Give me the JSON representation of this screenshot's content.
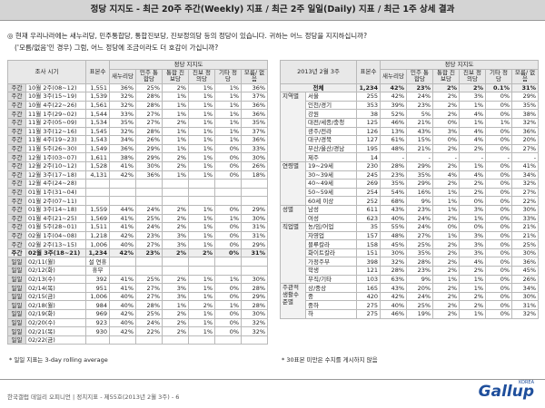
{
  "header": {
    "title": "정당 지지도 - 최근 20주 주간(Weekly) 지표 / 최근 2주 일일(Daily) 지표 / 최근 1주 상세 결과"
  },
  "question": [
    "◎ 현재 우리나라에는 새누리당, 민주통합당, 통합진보당, 진보정의당 등의 정당이 있습니다. 귀하는 어느 정당을 지지하십니까?",
    "('모름/없음'인 경우) 그럼, 어느 정당에 조금이라도 더 호감이 가십니까?"
  ],
  "left_table": {
    "col_period": "조사 시기",
    "col_n": "표본수",
    "group": "정당 지지도",
    "parties": [
      "새누리당",
      "민주 통합당",
      "통합 진보당",
      "진보 정의당",
      "기타 정당",
      "모름/ 없음"
    ],
    "rows": [
      {
        "kind": "주간",
        "period": "10월 2주(08~12)",
        "n": "1,551",
        "values": [
          "36%",
          "25%",
          "2%",
          "1%",
          "1%",
          "36%"
        ]
      },
      {
        "kind": "주간",
        "period": "10월 3주(15~19)",
        "n": "1,539",
        "values": [
          "32%",
          "28%",
          "1%",
          "1%",
          "1%",
          "37%"
        ]
      },
      {
        "kind": "주간",
        "period": "10월 4주(22~26)",
        "n": "1,561",
        "values": [
          "32%",
          "28%",
          "1%",
          "1%",
          "1%",
          "36%"
        ]
      },
      {
        "kind": "주간",
        "period": "11월 1주(29~02)",
        "n": "1,544",
        "values": [
          "33%",
          "27%",
          "1%",
          "1%",
          "1%",
          "36%"
        ]
      },
      {
        "kind": "주간",
        "period": "11월 2주(05~09)",
        "n": "1,534",
        "values": [
          "35%",
          "27%",
          "2%",
          "1%",
          "1%",
          "35%"
        ]
      },
      {
        "kind": "주간",
        "period": "11월 3주(12~16)",
        "n": "1,545",
        "values": [
          "32%",
          "28%",
          "1%",
          "1%",
          "1%",
          "37%"
        ]
      },
      {
        "kind": "주간",
        "period": "11월 4주(19~23)",
        "n": "1,543",
        "values": [
          "34%",
          "26%",
          "1%",
          "1%",
          "1%",
          "36%"
        ]
      },
      {
        "kind": "주간",
        "period": "11월 5주(26~30)",
        "n": "1,549",
        "values": [
          "36%",
          "29%",
          "1%",
          "1%",
          "0%",
          "33%"
        ]
      },
      {
        "kind": "주간",
        "period": "12월 1주(03~07)",
        "n": "1,611",
        "values": [
          "38%",
          "29%",
          "2%",
          "1%",
          "0%",
          "30%"
        ]
      },
      {
        "kind": "주간",
        "period": "12월 2주(10~12)",
        "n": "1,528",
        "values": [
          "41%",
          "30%",
          "2%",
          "1%",
          "0%",
          "26%"
        ]
      },
      {
        "kind": "주간",
        "period": "12월 3주(17~18)",
        "n": "4,131",
        "values": [
          "42%",
          "36%",
          "1%",
          "1%",
          "0%",
          "18%"
        ]
      },
      {
        "kind": "주간",
        "period": "12월 4주(24~28)"
      },
      {
        "kind": "주간",
        "period": "01월 1주(31~04)"
      },
      {
        "kind": "주간",
        "period": "01월 2주(07~11)"
      },
      {
        "kind": "주간",
        "period": "01월 3주(14~18)",
        "n": "1,559",
        "values": [
          "44%",
          "24%",
          "2%",
          "1%",
          "0%",
          "29%"
        ]
      },
      {
        "kind": "주간",
        "period": "01월 4주(21~25)",
        "n": "1,569",
        "values": [
          "41%",
          "25%",
          "2%",
          "1%",
          "1%",
          "30%"
        ]
      },
      {
        "kind": "주간",
        "period": "01월 5주(28~01)",
        "n": "1,511",
        "values": [
          "41%",
          "24%",
          "2%",
          "1%",
          "0%",
          "31%"
        ]
      },
      {
        "kind": "주간",
        "period": "02월 1주(04~08)",
        "n": "1,218",
        "values": [
          "42%",
          "23%",
          "3%",
          "1%",
          "0%",
          "31%"
        ]
      },
      {
        "kind": "주간",
        "period": "02월 2주(13~15)",
        "n": "1,006",
        "values": [
          "40%",
          "27%",
          "3%",
          "1%",
          "0%",
          "29%"
        ]
      },
      {
        "kind": "주간",
        "period": "02월 3주(18~21)",
        "n": "1,234",
        "values": [
          "42%",
          "23%",
          "2%",
          "2%",
          "0%",
          "31%"
        ]
      },
      {
        "kind": "일일",
        "period": "02/11(월)",
        "note": "설 연휴"
      },
      {
        "kind": "일일",
        "period": "02/12(화)",
        "note": "휴무"
      },
      {
        "kind": "일일",
        "period": "02/13(수)",
        "n": "392",
        "values": [
          "41%",
          "25%",
          "2%",
          "1%",
          "1%",
          "30%"
        ]
      },
      {
        "kind": "일일",
        "period": "02/14(목)",
        "n": "951",
        "values": [
          "41%",
          "27%",
          "3%",
          "1%",
          "0%",
          "28%"
        ]
      },
      {
        "kind": "일일",
        "period": "02/15(금)",
        "n": "1,006",
        "values": [
          "40%",
          "27%",
          "3%",
          "1%",
          "0%",
          "29%"
        ]
      },
      {
        "kind": "일일",
        "period": "02/18(월)",
        "n": "984",
        "values": [
          "40%",
          "28%",
          "1%",
          "2%",
          "1%",
          "28%"
        ]
      },
      {
        "kind": "일일",
        "period": "02/19(화)",
        "n": "969",
        "values": [
          "42%",
          "25%",
          "2%",
          "1%",
          "0%",
          "30%"
        ]
      },
      {
        "kind": "일일",
        "period": "02/20(수)",
        "n": "923",
        "values": [
          "40%",
          "24%",
          "2%",
          "1%",
          "0%",
          "32%"
        ]
      },
      {
        "kind": "일일",
        "period": "02/21(목)",
        "n": "930",
        "values": [
          "42%",
          "22%",
          "2%",
          "1%",
          "0%",
          "32%"
        ]
      },
      {
        "kind": "일일",
        "period": "02/22(금)"
      }
    ],
    "footnote": "* 일일 지표는 3-day rolling average"
  },
  "right_table": {
    "col_period": "2013년 2월 3주",
    "col_n": "표본수",
    "group": "정당 지지도",
    "parties": [
      "새누리당",
      "민주 통합당",
      "통합 진보당",
      "진보 정의당",
      "기타 정당",
      "모름/ 없음"
    ],
    "total": {
      "name": "전체",
      "n": "1,234",
      "values": [
        "42%",
        "23%",
        "2%",
        "2%",
        "0.1%",
        "31%"
      ]
    },
    "groups": [
      {
        "label": "지역별",
        "rows": [
          {
            "name": "서울",
            "n": "255",
            "values": [
              "42%",
              "24%",
              "2%",
              "3%",
              "0%",
              "29%"
            ]
          },
          {
            "name": "인천/경기",
            "n": "353",
            "values": [
              "39%",
              "23%",
              "2%",
              "1%",
              "0%",
              "35%"
            ]
          },
          {
            "name": "강원",
            "n": "38",
            "values": [
              "52%",
              "5%",
              "2%",
              "4%",
              "0%",
              "38%"
            ]
          },
          {
            "name": "대전/세종/충청",
            "n": "125",
            "values": [
              "46%",
              "21%",
              "0%",
              "1%",
              "1%",
              "32%"
            ]
          },
          {
            "name": "광주/전라",
            "n": "126",
            "values": [
              "13%",
              "43%",
              "3%",
              "4%",
              "0%",
              "36%"
            ]
          },
          {
            "name": "대구/경북",
            "n": "127",
            "values": [
              "61%",
              "15%",
              "0%",
              "4%",
              "0%",
              "20%"
            ]
          },
          {
            "name": "부산/울산/경남",
            "n": "195",
            "values": [
              "48%",
              "21%",
              "2%",
              "2%",
              "0%",
              "27%"
            ]
          },
          {
            "name": "제주",
            "n": "14",
            "values": [
              "-",
              "-",
              "-",
              "-",
              "-",
              "-"
            ]
          }
        ]
      },
      {
        "label": "연령별",
        "rows": [
          {
            "name": "19~29세",
            "n": "230",
            "values": [
              "28%",
              "29%",
              "2%",
              "1%",
              "0%",
              "41%"
            ]
          },
          {
            "name": "30~39세",
            "n": "245",
            "values": [
              "23%",
              "35%",
              "4%",
              "4%",
              "0%",
              "34%"
            ]
          },
          {
            "name": "40~49세",
            "n": "269",
            "values": [
              "35%",
              "29%",
              "2%",
              "2%",
              "0%",
              "32%"
            ]
          },
          {
            "name": "50~59세",
            "n": "254",
            "values": [
              "54%",
              "16%",
              "1%",
              "2%",
              "0%",
              "27%"
            ]
          },
          {
            "name": "60세 이상",
            "n": "252",
            "values": [
              "68%",
              "9%",
              "1%",
              "0%",
              "0%",
              "22%"
            ]
          }
        ]
      },
      {
        "label": "성별",
        "rows": [
          {
            "name": "남성",
            "n": "611",
            "values": [
              "43%",
              "23%",
              "1%",
              "3%",
              "0%",
              "30%"
            ]
          },
          {
            "name": "여성",
            "n": "623",
            "values": [
              "40%",
              "24%",
              "2%",
              "1%",
              "0%",
              "33%"
            ]
          }
        ]
      },
      {
        "label": "직업별",
        "rows": [
          {
            "name": "농/임/어업",
            "n": "35",
            "values": [
              "55%",
              "24%",
              "0%",
              "0%",
              "0%",
              "21%"
            ]
          },
          {
            "name": "자영업",
            "n": "157",
            "values": [
              "48%",
              "27%",
              "1%",
              "3%",
              "0%",
              "21%"
            ]
          },
          {
            "name": "블루칼라",
            "n": "158",
            "values": [
              "45%",
              "25%",
              "2%",
              "3%",
              "0%",
              "25%"
            ]
          },
          {
            "name": "화이트칼라",
            "n": "151",
            "values": [
              "30%",
              "35%",
              "2%",
              "3%",
              "0%",
              "30%"
            ]
          },
          {
            "name": "가정주부",
            "n": "398",
            "values": [
              "32%",
              "28%",
              "2%",
              "4%",
              "0%",
              "36%"
            ]
          },
          {
            "name": "학생",
            "n": "121",
            "values": [
              "28%",
              "23%",
              "2%",
              "2%",
              "0%",
              "45%"
            ]
          },
          {
            "name": "무직/기타",
            "n": "103",
            "values": [
              "63%",
              "9%",
              "1%",
              "1%",
              "0%",
              "26%"
            ]
          }
        ]
      },
      {
        "label": "주관적 생활수준별",
        "rows": [
          {
            "name": "상/중상",
            "n": "165",
            "values": [
              "43%",
              "20%",
              "2%",
              "1%",
              "0%",
              "34%"
            ]
          },
          {
            "name": "중",
            "n": "420",
            "values": [
              "42%",
              "24%",
              "2%",
              "2%",
              "0%",
              "30%"
            ]
          },
          {
            "name": "중하",
            "n": "275",
            "values": [
              "40%",
              "25%",
              "2%",
              "2%",
              "0%",
              "31%"
            ]
          },
          {
            "name": "하",
            "n": "275",
            "values": [
              "46%",
              "19%",
              "2%",
              "1%",
              "0%",
              "32%"
            ]
          }
        ]
      }
    ],
    "footnote": "* 30표본 미만은 수치를 게시하지 않음"
  },
  "footer": {
    "text": "한국갤럽 데일리 오피니언 | 정치지표 - 제55호(2013년 2월 3주) - 6",
    "logo": "Gallup",
    "logo_sub": "KOREA"
  }
}
